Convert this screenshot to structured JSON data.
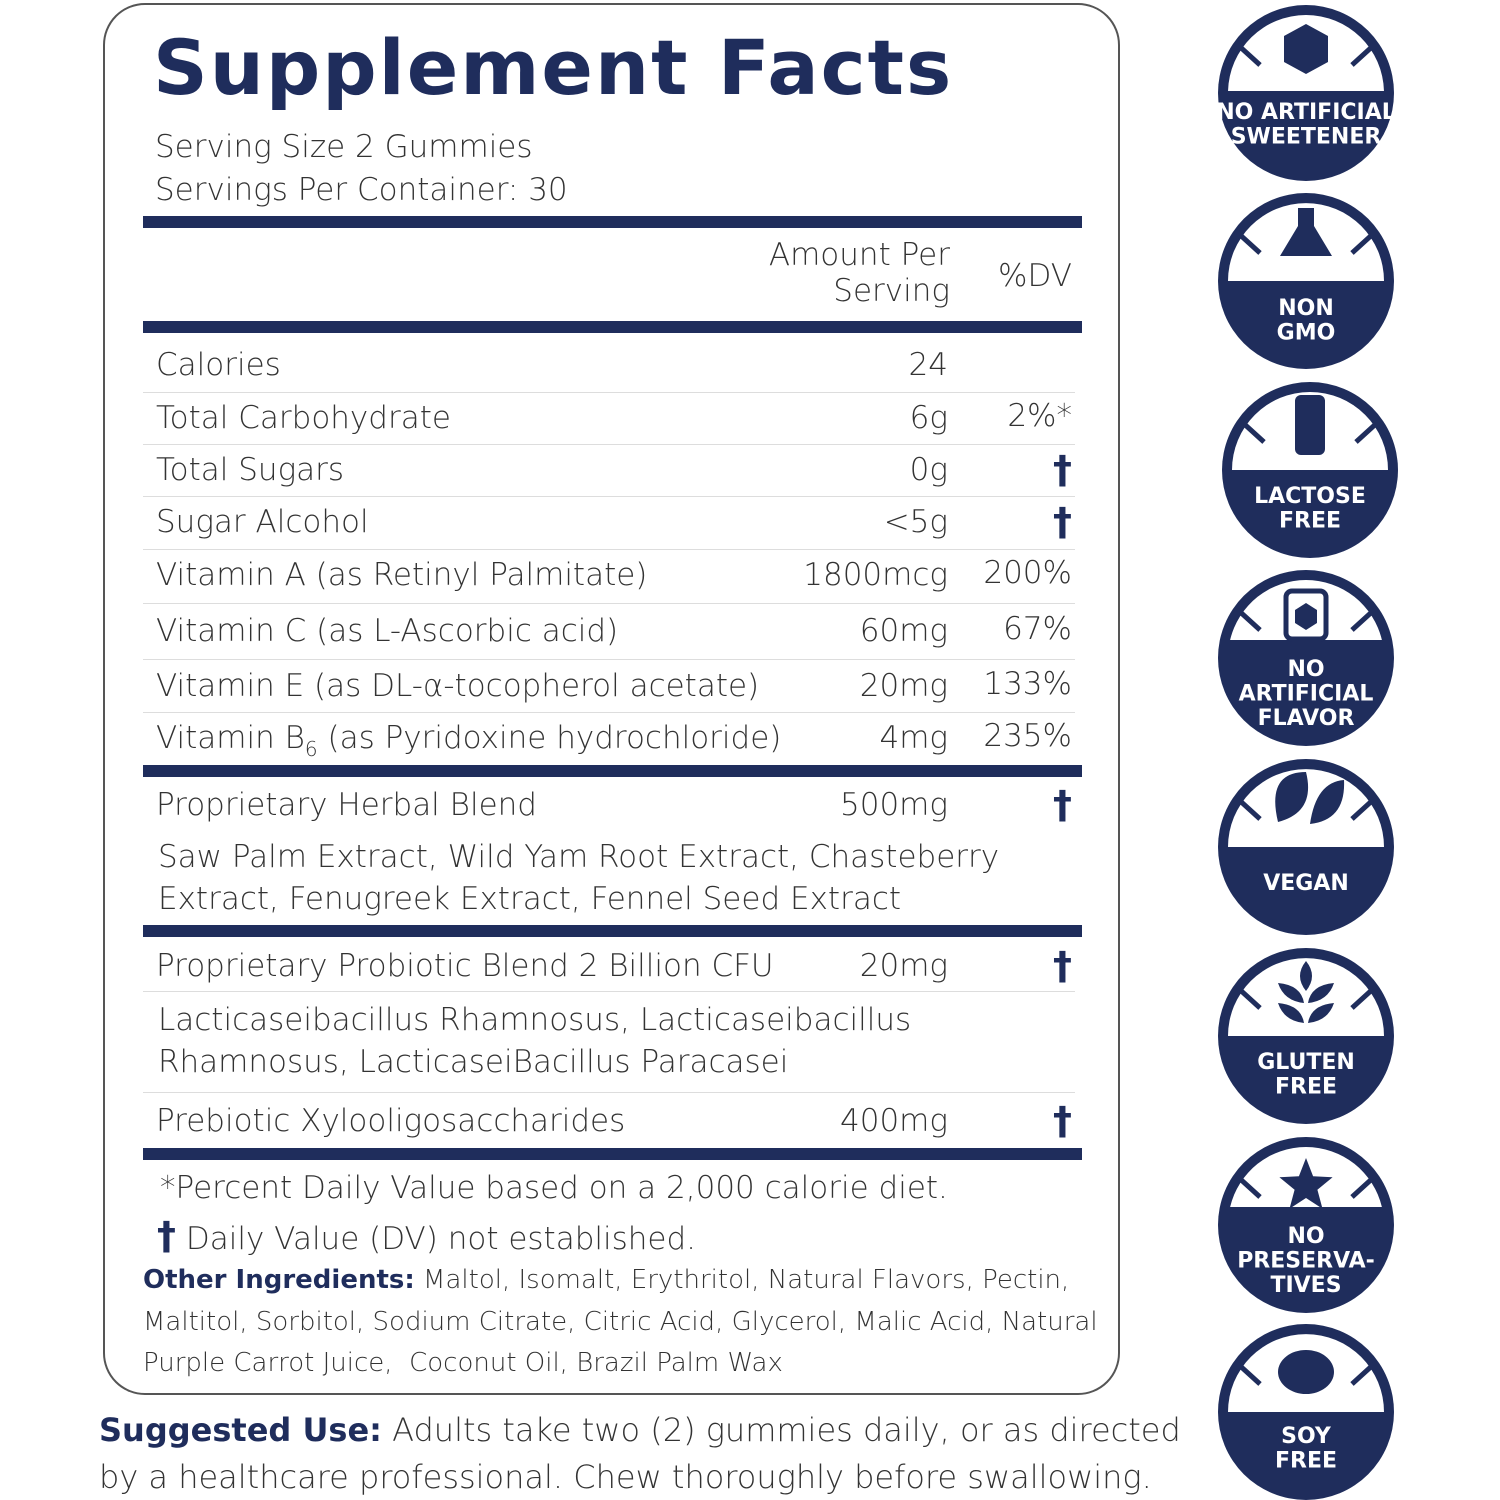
{
  "label": {
    "title": "Supplement Facts",
    "serving_size": "Serving Size 2 Gummies",
    "servings_per_container": "Servings Per Container: 30",
    "header": {
      "amount": "Amount Per Serving",
      "dv": "%DV"
    },
    "nutrients": [
      {
        "name": "Calories",
        "amount": "24"
      },
      {
        "name": "Total Carbohydrate",
        "amount": "6g",
        "dv": "2%*"
      },
      {
        "name": "Total Sugars",
        "amount": "0g",
        "dv": "†"
      },
      {
        "name": "Sugar Alcohol",
        "amount": "<5g",
        "dv": "†"
      },
      {
        "name": "Vitamin A (as Retinyl Palmitate)",
        "amount": "1800mcg",
        "dv": "200%"
      },
      {
        "name": "Vitamin C (as L-Ascorbic acid)",
        "amount": "60mg",
        "dv": "67%"
      },
      {
        "name": "Vitamin E (as DL-α-tocopherol acetate)",
        "amount": "20mg",
        "dv": "133%"
      },
      {
        "name": "Vitamin B",
        "subscript": "6",
        "name_rest": " (as Pyridoxine hydrochloride)",
        "amount": "4mg",
        "dv": "235%"
      }
    ],
    "blends": [
      {
        "name": "Proprietary Herbal Blend",
        "amount": "500mg",
        "dv": "†",
        "ingredients": [
          "Saw Palm Extract, Wild Yam Root Extract, Chasteberry",
          "Extract, Fenugreek Extract, Fennel Seed Extract"
        ]
      },
      {
        "name": "Proprietary Probiotic Blend 2 Billion CFU",
        "amount": "20mg",
        "dv": "†",
        "ingredients": [
          "Lacticaseibacillus Rhamnosus, Lacticaseibacillus",
          "Rhamnosus, LacticaseiBacillus Paracasei"
        ]
      },
      {
        "name": "Prebiotic Xylooligosaccharides",
        "amount": "400mg",
        "dv": "†"
      }
    ],
    "footnotes": [
      "*Percent Daily Value based on a 2,000 calorie diet.",
      {
        "mark": "†",
        "text": " Daily Value (DV) not established."
      }
    ],
    "other_ingredients": {
      "label": "Other Ingredients:",
      "lines": [
        " Maltol, Isomalt, Erythritol, Natural Flavors, Pectin,",
        "Maltitol, Sorbitol, Sodium Citrate, Citric Acid, Glycerol, Malic Acid, Natural",
        "Purple Carrot Juice,  Coconut Oil, Brazil Palm Wax"
      ]
    }
  },
  "suggested_use": {
    "label": "Suggested Use:",
    "lines": [
      " Adults take two (2) gummies daily, or as directed",
      "by a healthcare professional. Chew thoroughly before swallowing."
    ]
  },
  "badges": [
    [
      "NO ARTIFICIAL",
      "SWEETENER"
    ],
    [
      "NON",
      "GMO"
    ],
    [
      "LACTOSE",
      "FREE"
    ],
    [
      "NO",
      "ARTIFICIAL",
      "FLAVOR"
    ],
    [
      "VEGAN"
    ],
    [
      "GLUTEN",
      "FREE"
    ],
    [
      "NO",
      "PRESERVA-",
      "TIVES"
    ],
    [
      "SOY",
      "FREE"
    ]
  ]
}
